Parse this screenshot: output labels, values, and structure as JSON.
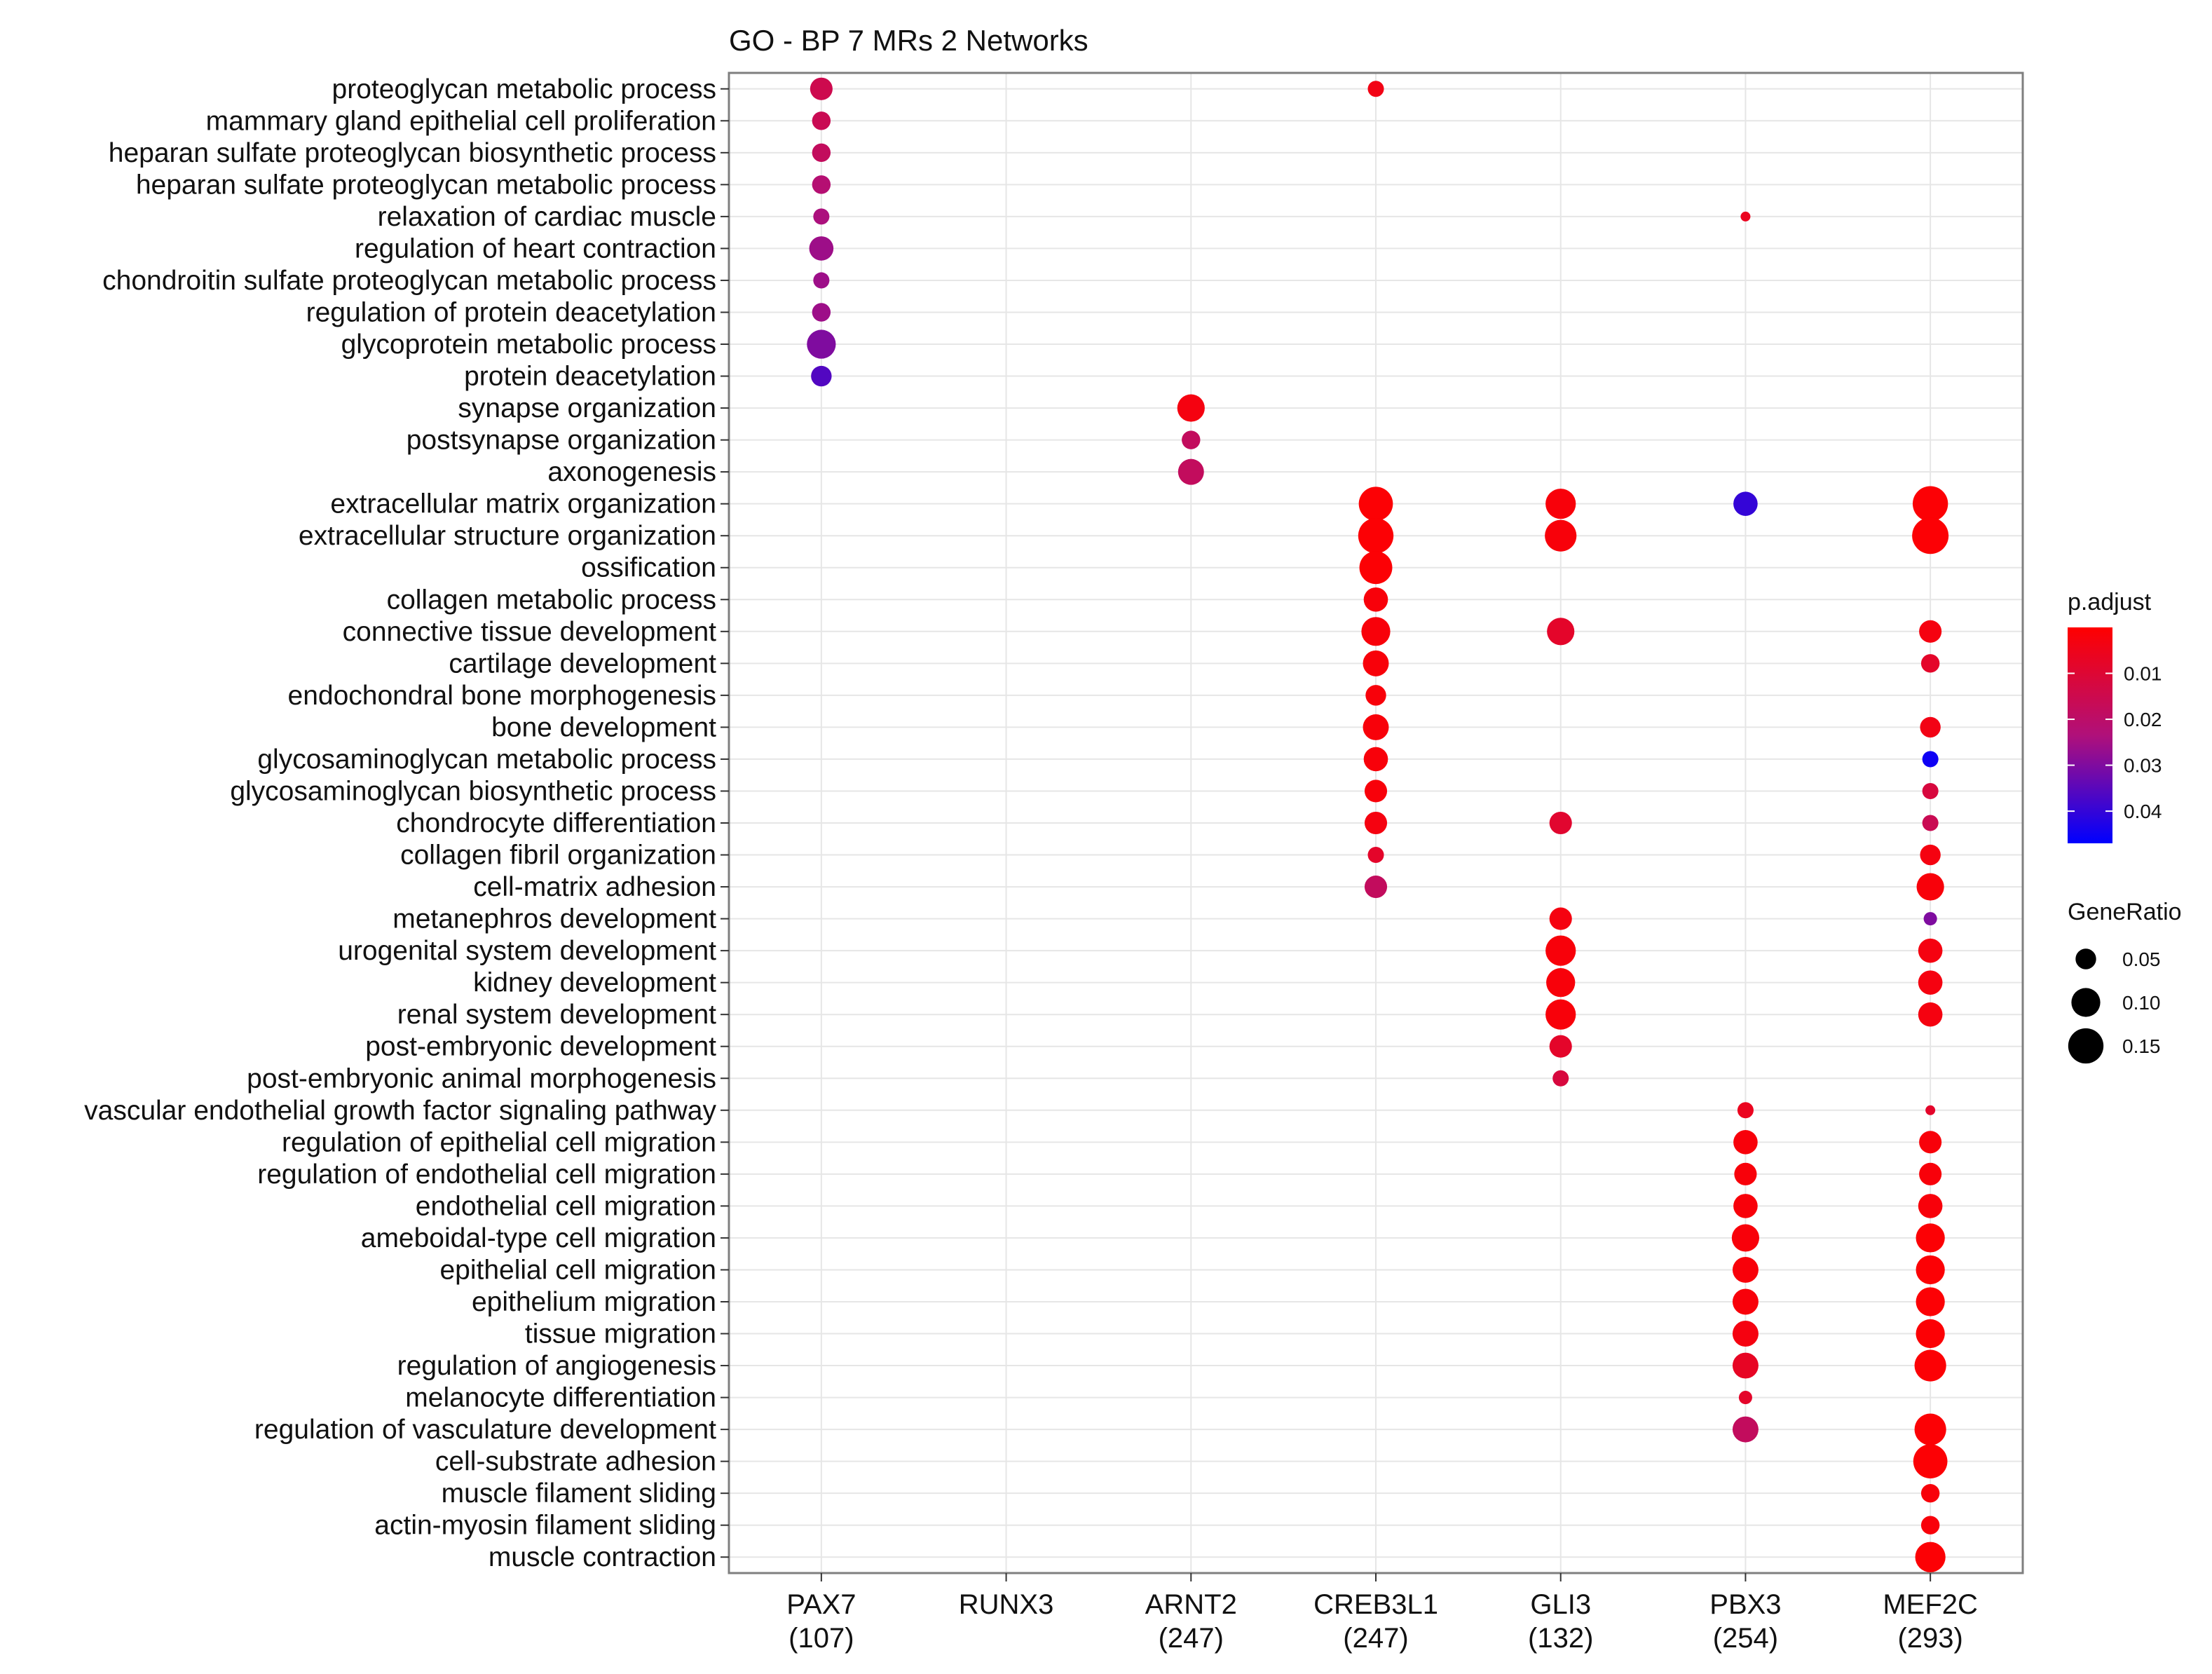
{
  "chart_data": {
    "type": "dot",
    "title": "GO - BP 7 MRs 2 Networks",
    "xlabel": "",
    "ylabel": "",
    "x_categories": [
      {
        "name": "PAX7",
        "count": "(107)"
      },
      {
        "name": "RUNX3",
        "count": ""
      },
      {
        "name": "ARNT2",
        "count": "(247)"
      },
      {
        "name": "CREB3L1",
        "count": "(247)"
      },
      {
        "name": "GLI3",
        "count": "(132)"
      },
      {
        "name": "PBX3",
        "count": "(254)"
      },
      {
        "name": "MEF2C",
        "count": "(293)"
      }
    ],
    "y_categories": [
      "proteoglycan metabolic process",
      "mammary gland epithelial cell proliferation",
      "heparan sulfate proteoglycan biosynthetic process",
      "heparan sulfate proteoglycan metabolic process",
      "relaxation of cardiac muscle",
      "regulation of heart contraction",
      "chondroitin sulfate proteoglycan metabolic process",
      "regulation of protein deacetylation",
      "glycoprotein metabolic process",
      "protein deacetylation",
      "synapse organization",
      "postsynapse organization",
      "axonogenesis",
      "extracellular matrix organization",
      "extracellular structure organization",
      "ossification",
      "collagen metabolic process",
      "connective tissue development",
      "cartilage development",
      "endochondral bone morphogenesis",
      "bone development",
      "glycosaminoglycan metabolic process",
      "glycosaminoglycan biosynthetic process",
      "chondrocyte differentiation",
      "collagen fibril organization",
      "cell-matrix adhesion",
      "metanephros development",
      "urogenital system development",
      "kidney development",
      "renal system development",
      "post-embryonic development",
      "post-embryonic animal morphogenesis",
      "vascular endothelial growth factor signaling pathway",
      "regulation of epithelial cell migration",
      "regulation of endothelial cell migration",
      "endothelial cell migration",
      "ameboidal-type cell migration",
      "epithelial cell migration",
      "epithelium migration",
      "tissue migration",
      "regulation of angiogenesis",
      "melanocyte differentiation",
      "regulation of vasculature development",
      "cell-substrate adhesion",
      "muscle filament sliding",
      "actin-myosin filament sliding",
      "muscle contraction"
    ],
    "points": [
      {
        "x": "PAX7",
        "y": "proteoglycan metabolic process",
        "gene_ratio": 0.06,
        "p_adjust": 0.015
      },
      {
        "x": "PAX7",
        "y": "mammary gland epithelial cell proliferation",
        "gene_ratio": 0.04,
        "p_adjust": 0.016
      },
      {
        "x": "PAX7",
        "y": "heparan sulfate proteoglycan biosynthetic process",
        "gene_ratio": 0.04,
        "p_adjust": 0.018
      },
      {
        "x": "PAX7",
        "y": "heparan sulfate proteoglycan metabolic process",
        "gene_ratio": 0.04,
        "p_adjust": 0.022
      },
      {
        "x": "PAX7",
        "y": "relaxation of cardiac muscle",
        "gene_ratio": 0.03,
        "p_adjust": 0.024
      },
      {
        "x": "PAX7",
        "y": "regulation of heart contraction",
        "gene_ratio": 0.07,
        "p_adjust": 0.026
      },
      {
        "x": "PAX7",
        "y": "chondroitin sulfate proteoglycan metabolic process",
        "gene_ratio": 0.03,
        "p_adjust": 0.026
      },
      {
        "x": "PAX7",
        "y": "regulation of protein deacetylation",
        "gene_ratio": 0.04,
        "p_adjust": 0.026
      },
      {
        "x": "PAX7",
        "y": "glycoprotein metabolic process",
        "gene_ratio": 0.1,
        "p_adjust": 0.03
      },
      {
        "x": "PAX7",
        "y": "protein deacetylation",
        "gene_ratio": 0.05,
        "p_adjust": 0.036
      },
      {
        "x": "ARNT2",
        "y": "synapse organization",
        "gene_ratio": 0.09,
        "p_adjust": 0.003
      },
      {
        "x": "ARNT2",
        "y": "postsynapse organization",
        "gene_ratio": 0.04,
        "p_adjust": 0.018
      },
      {
        "x": "ARNT2",
        "y": "axonogenesis",
        "gene_ratio": 0.08,
        "p_adjust": 0.018
      },
      {
        "x": "CREB3L1",
        "y": "proteoglycan metabolic process",
        "gene_ratio": 0.03,
        "p_adjust": 0.004
      },
      {
        "x": "CREB3L1",
        "y": "extracellular matrix organization",
        "gene_ratio": 0.14,
        "p_adjust": 0.001
      },
      {
        "x": "CREB3L1",
        "y": "extracellular structure organization",
        "gene_ratio": 0.15,
        "p_adjust": 0.001
      },
      {
        "x": "CREB3L1",
        "y": "ossification",
        "gene_ratio": 0.13,
        "p_adjust": 0.001
      },
      {
        "x": "CREB3L1",
        "y": "collagen metabolic process",
        "gene_ratio": 0.07,
        "p_adjust": 0.002
      },
      {
        "x": "CREB3L1",
        "y": "connective tissue development",
        "gene_ratio": 0.1,
        "p_adjust": 0.002
      },
      {
        "x": "CREB3L1",
        "y": "cartilage development",
        "gene_ratio": 0.08,
        "p_adjust": 0.002
      },
      {
        "x": "CREB3L1",
        "y": "endochondral bone morphogenesis",
        "gene_ratio": 0.05,
        "p_adjust": 0.002
      },
      {
        "x": "CREB3L1",
        "y": "bone development",
        "gene_ratio": 0.08,
        "p_adjust": 0.002
      },
      {
        "x": "CREB3L1",
        "y": "glycosaminoglycan metabolic process",
        "gene_ratio": 0.07,
        "p_adjust": 0.002
      },
      {
        "x": "CREB3L1",
        "y": "glycosaminoglycan biosynthetic process",
        "gene_ratio": 0.06,
        "p_adjust": 0.002
      },
      {
        "x": "CREB3L1",
        "y": "chondrocyte differentiation",
        "gene_ratio": 0.06,
        "p_adjust": 0.003
      },
      {
        "x": "CREB3L1",
        "y": "collagen fibril organization",
        "gene_ratio": 0.03,
        "p_adjust": 0.008
      },
      {
        "x": "CREB3L1",
        "y": "cell-matrix adhesion",
        "gene_ratio": 0.06,
        "p_adjust": 0.018
      },
      {
        "x": "GLI3",
        "y": "extracellular matrix organization",
        "gene_ratio": 0.11,
        "p_adjust": 0.002
      },
      {
        "x": "GLI3",
        "y": "extracellular structure organization",
        "gene_ratio": 0.12,
        "p_adjust": 0.002
      },
      {
        "x": "GLI3",
        "y": "connective tissue development",
        "gene_ratio": 0.09,
        "p_adjust": 0.008
      },
      {
        "x": "GLI3",
        "y": "chondrocyte differentiation",
        "gene_ratio": 0.06,
        "p_adjust": 0.009
      },
      {
        "x": "GLI3",
        "y": "metanephros development",
        "gene_ratio": 0.06,
        "p_adjust": 0.003
      },
      {
        "x": "GLI3",
        "y": "urogenital system development",
        "gene_ratio": 0.11,
        "p_adjust": 0.002
      },
      {
        "x": "GLI3",
        "y": "kidney development",
        "gene_ratio": 0.1,
        "p_adjust": 0.002
      },
      {
        "x": "GLI3",
        "y": "renal system development",
        "gene_ratio": 0.11,
        "p_adjust": 0.002
      },
      {
        "x": "GLI3",
        "y": "post-embryonic development",
        "gene_ratio": 0.06,
        "p_adjust": 0.008
      },
      {
        "x": "GLI3",
        "y": "post-embryonic animal morphogenesis",
        "gene_ratio": 0.03,
        "p_adjust": 0.012
      },
      {
        "x": "PBX3",
        "y": "relaxation of cardiac muscle",
        "gene_ratio": 0.01,
        "p_adjust": 0.006
      },
      {
        "x": "PBX3",
        "y": "extracellular matrix organization",
        "gene_ratio": 0.07,
        "p_adjust": 0.04
      },
      {
        "x": "PBX3",
        "y": "vascular endothelial growth factor signaling pathway",
        "gene_ratio": 0.03,
        "p_adjust": 0.006
      },
      {
        "x": "PBX3",
        "y": "regulation of epithelial cell migration",
        "gene_ratio": 0.07,
        "p_adjust": 0.002
      },
      {
        "x": "PBX3",
        "y": "regulation of endothelial cell migration",
        "gene_ratio": 0.06,
        "p_adjust": 0.002
      },
      {
        "x": "PBX3",
        "y": "endothelial cell migration",
        "gene_ratio": 0.07,
        "p_adjust": 0.002
      },
      {
        "x": "PBX3",
        "y": "ameboidal-type cell migration",
        "gene_ratio": 0.09,
        "p_adjust": 0.002
      },
      {
        "x": "PBX3",
        "y": "epithelial cell migration",
        "gene_ratio": 0.08,
        "p_adjust": 0.002
      },
      {
        "x": "PBX3",
        "y": "epithelium migration",
        "gene_ratio": 0.08,
        "p_adjust": 0.002
      },
      {
        "x": "PBX3",
        "y": "tissue migration",
        "gene_ratio": 0.08,
        "p_adjust": 0.003
      },
      {
        "x": "PBX3",
        "y": "regulation of angiogenesis",
        "gene_ratio": 0.08,
        "p_adjust": 0.007
      },
      {
        "x": "PBX3",
        "y": "melanocyte differentiation",
        "gene_ratio": 0.02,
        "p_adjust": 0.008
      },
      {
        "x": "PBX3",
        "y": "regulation of vasculature development",
        "gene_ratio": 0.08,
        "p_adjust": 0.018
      },
      {
        "x": "MEF2C",
        "y": "extracellular matrix organization",
        "gene_ratio": 0.15,
        "p_adjust": 0.001
      },
      {
        "x": "MEF2C",
        "y": "extracellular structure organization",
        "gene_ratio": 0.16,
        "p_adjust": 0.001
      },
      {
        "x": "MEF2C",
        "y": "connective tissue development",
        "gene_ratio": 0.06,
        "p_adjust": 0.003
      },
      {
        "x": "MEF2C",
        "y": "cartilage development",
        "gene_ratio": 0.04,
        "p_adjust": 0.008
      },
      {
        "x": "MEF2C",
        "y": "bone development",
        "gene_ratio": 0.05,
        "p_adjust": 0.004
      },
      {
        "x": "MEF2C",
        "y": "glycosaminoglycan metabolic process",
        "gene_ratio": 0.03,
        "p_adjust": 0.045
      },
      {
        "x": "MEF2C",
        "y": "glycosaminoglycan biosynthetic process",
        "gene_ratio": 0.03,
        "p_adjust": 0.012
      },
      {
        "x": "MEF2C",
        "y": "chondrocyte differentiation",
        "gene_ratio": 0.03,
        "p_adjust": 0.016
      },
      {
        "x": "MEF2C",
        "y": "collagen fibril organization",
        "gene_ratio": 0.05,
        "p_adjust": 0.003
      },
      {
        "x": "MEF2C",
        "y": "cell-matrix adhesion",
        "gene_ratio": 0.09,
        "p_adjust": 0.002
      },
      {
        "x": "MEF2C",
        "y": "metanephros development",
        "gene_ratio": 0.02,
        "p_adjust": 0.03
      },
      {
        "x": "MEF2C",
        "y": "urogenital system development",
        "gene_ratio": 0.07,
        "p_adjust": 0.003
      },
      {
        "x": "MEF2C",
        "y": "kidney development",
        "gene_ratio": 0.07,
        "p_adjust": 0.003
      },
      {
        "x": "MEF2C",
        "y": "renal system development",
        "gene_ratio": 0.07,
        "p_adjust": 0.003
      },
      {
        "x": "MEF2C",
        "y": "vascular endothelial growth factor signaling pathway",
        "gene_ratio": 0.01,
        "p_adjust": 0.008
      },
      {
        "x": "MEF2C",
        "y": "regulation of epithelial cell migration",
        "gene_ratio": 0.06,
        "p_adjust": 0.002
      },
      {
        "x": "MEF2C",
        "y": "regulation of endothelial cell migration",
        "gene_ratio": 0.06,
        "p_adjust": 0.002
      },
      {
        "x": "MEF2C",
        "y": "endothelial cell migration",
        "gene_ratio": 0.07,
        "p_adjust": 0.002
      },
      {
        "x": "MEF2C",
        "y": "ameboidal-type cell migration",
        "gene_ratio": 0.1,
        "p_adjust": 0.001
      },
      {
        "x": "MEF2C",
        "y": "epithelial cell migration",
        "gene_ratio": 0.1,
        "p_adjust": 0.001
      },
      {
        "x": "MEF2C",
        "y": "epithelium migration",
        "gene_ratio": 0.1,
        "p_adjust": 0.001
      },
      {
        "x": "MEF2C",
        "y": "tissue migration",
        "gene_ratio": 0.1,
        "p_adjust": 0.001
      },
      {
        "x": "MEF2C",
        "y": "regulation of angiogenesis",
        "gene_ratio": 0.12,
        "p_adjust": 0.001
      },
      {
        "x": "MEF2C",
        "y": "regulation of vasculature development",
        "gene_ratio": 0.12,
        "p_adjust": 0.001
      },
      {
        "x": "MEF2C",
        "y": "cell-substrate adhesion",
        "gene_ratio": 0.14,
        "p_adjust": 0.001
      },
      {
        "x": "MEF2C",
        "y": "muscle filament sliding",
        "gene_ratio": 0.04,
        "p_adjust": 0.002
      },
      {
        "x": "MEF2C",
        "y": "actin-myosin filament sliding",
        "gene_ratio": 0.04,
        "p_adjust": 0.002
      },
      {
        "x": "MEF2C",
        "y": "muscle contraction",
        "gene_ratio": 0.11,
        "p_adjust": 0.001
      }
    ],
    "color_legend": {
      "title": "p.adjust",
      "min": 0.0,
      "max": 0.047,
      "ticks": [
        0.01,
        0.02,
        0.03,
        0.04
      ],
      "tick_labels": [
        "0.01",
        "0.02",
        "0.03",
        "0.04"
      ],
      "low_color": "#ff0000",
      "high_color": "#0000ff"
    },
    "size_legend": {
      "title": "GeneRatio",
      "values": [
        0.05,
        0.1,
        0.15
      ],
      "labels": [
        "0.05",
        "0.10",
        "0.15"
      ]
    },
    "size_range": [
      0.01,
      0.16
    ],
    "grid": true,
    "legend_position": "right"
  }
}
